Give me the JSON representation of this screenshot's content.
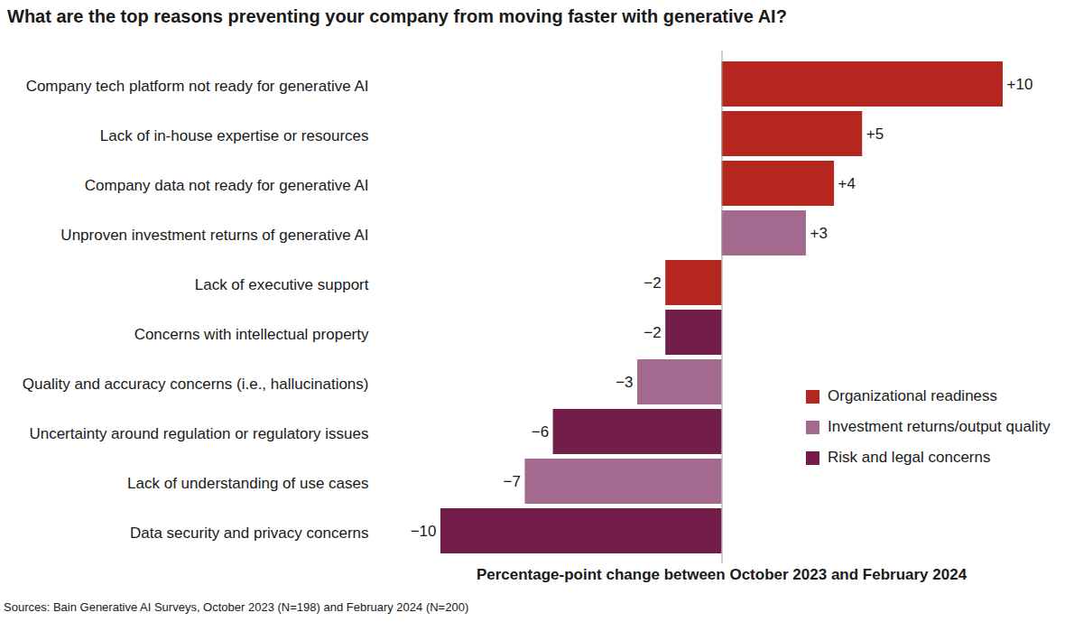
{
  "chart_data": {
    "type": "bar",
    "orientation": "horizontal",
    "title": "What are the top reasons preventing your company from moving faster with generative AI?",
    "x_label": "Percentage-point change between October 2023 and February 2024",
    "source": "Sources: Bain Generative AI Surveys, October 2023 (N=198) and February 2024 (N=200)",
    "categories": [
      "Company tech platform not ready for generative AI",
      "Lack of in-house expertise or resources",
      "Company data not ready for generative AI",
      "Unproven investment returns of generative AI",
      "Lack of executive support",
      "Concerns with intellectual property",
      "Quality and accuracy concerns (i.e., hallucinations)",
      "Uncertainty around regulation or regulatory issues",
      "Lack of understanding of use cases",
      "Data security and privacy concerns"
    ],
    "series": [
      {
        "name": "Organizational readiness",
        "color": "#b5261e",
        "values": [
          10,
          5,
          4,
          null,
          -2,
          null,
          null,
          null,
          null,
          null
        ],
        "value_labels": [
          "+10",
          "+5",
          "+4",
          null,
          "−2",
          null,
          null,
          null,
          null,
          null
        ]
      },
      {
        "name": "Investment returns/output quality",
        "color": "#a4698f",
        "values": [
          null,
          null,
          null,
          3,
          null,
          null,
          -3,
          null,
          -7,
          null
        ],
        "value_labels": [
          null,
          null,
          null,
          "+3",
          null,
          null,
          "−3",
          null,
          "−7",
          null
        ]
      },
      {
        "name": "Risk and legal concerns",
        "color": "#731d4b",
        "values": [
          null,
          null,
          null,
          null,
          null,
          -2,
          null,
          -6,
          null,
          -10
        ],
        "value_labels": [
          null,
          null,
          null,
          null,
          null,
          "−2",
          null,
          "−6",
          null,
          "−10"
        ]
      }
    ],
    "xlim": [
      -10,
      10
    ],
    "grid": false,
    "legend": "right",
    "data_labels": true,
    "tick_labels": "y"
  }
}
